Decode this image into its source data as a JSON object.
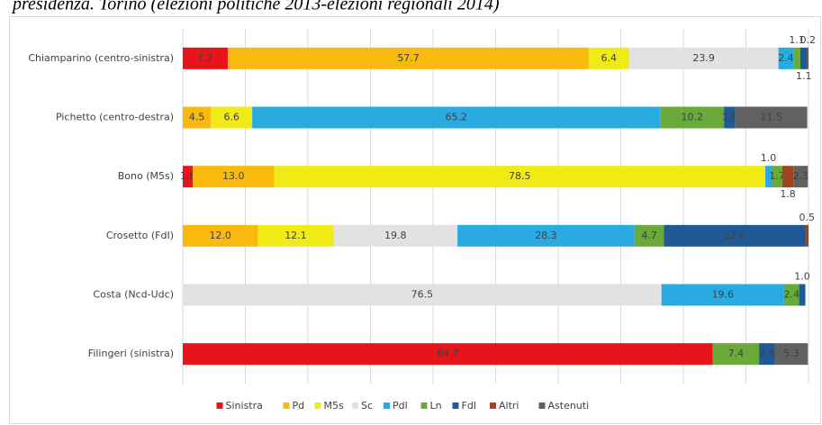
{
  "chart_data": {
    "type": "stacked_bar_horizontal",
    "title": "presidenza. Torino (elezioni politiche 2013-elezioni regionali 2014)",
    "categories": [
      "Chiamparino (centro-sinistra)",
      "Pichetto (centro-destra)",
      "Bono (M5s)",
      "Crosetto (FdI)",
      "Costa (Ncd-Udc)",
      "Filingeri (sinistra)"
    ],
    "xlim": [
      0,
      100
    ],
    "xticks": [
      0,
      10,
      20,
      30,
      40,
      50,
      60,
      70,
      80,
      90,
      100
    ],
    "grid": true,
    "legend": "bottom",
    "series": [
      {
        "name": "Sinistra",
        "color": "#e8141c",
        "values": [
          7.2,
          null,
          1.6,
          null,
          null,
          84.7
        ],
        "value_labels": [
          "7.2",
          null,
          "1.6",
          null,
          null,
          "84.7"
        ]
      },
      {
        "name": "Pd",
        "color": "#f9b90f",
        "values": [
          57.7,
          4.5,
          13.0,
          12.0,
          null,
          null
        ],
        "value_labels": [
          "57.7",
          "4.5",
          "13.0",
          "12.0",
          null,
          null
        ]
      },
      {
        "name": "M5s",
        "color": "#f0ea16",
        "values": [
          6.4,
          6.6,
          78.5,
          12.1,
          null,
          null
        ],
        "value_labels": [
          "6.4",
          "6.6",
          "78.5",
          "12.1",
          null,
          null
        ]
      },
      {
        "name": "Sc",
        "color": "#e2e2e2",
        "values": [
          23.9,
          null,
          null,
          19.8,
          76.5,
          null
        ],
        "value_labels": [
          "23.9",
          null,
          null,
          "19.8",
          "76.5",
          null
        ]
      },
      {
        "name": "Pdl",
        "color": "#29abe2",
        "values": [
          2.4,
          65.2,
          1.0,
          28.3,
          19.6,
          null
        ],
        "value_labels": [
          "2.4",
          "65.2",
          "1.0",
          "28.3",
          "19.6",
          null
        ]
      },
      {
        "name": "Ln",
        "color": "#6aaa3a",
        "values": [
          1.1,
          10.2,
          1.7,
          4.7,
          2.4,
          7.4
        ],
        "value_labels": [
          "1.1",
          "10.2",
          "1.7",
          "4.7",
          "2.4",
          "7.4"
        ]
      },
      {
        "name": "FdI",
        "color": "#1f5a96",
        "values": [
          1.1,
          1.8,
          null,
          22.6,
          1.0,
          2.5
        ],
        "value_labels": [
          "1.1",
          "1.8",
          null,
          "22.6",
          "1.0",
          "2.5"
        ]
      },
      {
        "name": "Altri",
        "color": "#a0441f",
        "values": [
          0.2,
          null,
          1.8,
          0.5,
          null,
          null
        ],
        "value_labels": [
          "0.2",
          null,
          "1.8",
          "0.5",
          null,
          null
        ]
      },
      {
        "name": "Astenuti",
        "color": "#616161",
        "values": [
          null,
          11.5,
          2.3,
          null,
          null,
          5.3
        ],
        "value_labels": [
          null,
          "11.5",
          "2.3",
          null,
          null,
          "5.3"
        ]
      }
    ]
  }
}
